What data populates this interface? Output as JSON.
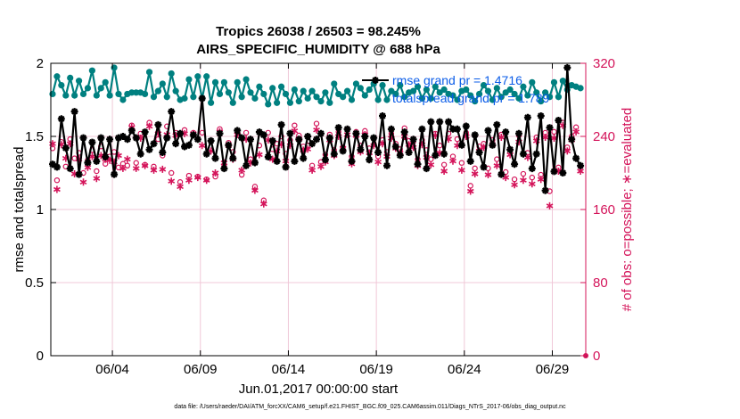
{
  "chart_data": {
    "type": "line",
    "title_line1": "Tropics 26038 / 26503 = 98.245%",
    "title_line2": "AIRS_SPECIFIC_HUMIDITY @ 688 hPa",
    "xlabel": "Jun.01,2017 00:00:00 start",
    "ylabel_left": "rmse and totalspread",
    "ylabel_right": "# of obs: o=possible; ∗=evaluated",
    "xlim": [
      0.5,
      30.9
    ],
    "ylim_left": [
      0,
      2
    ],
    "ylim_right": [
      0,
      320
    ],
    "x_ticks": [
      {
        "x": 4,
        "label": "06/04"
      },
      {
        "x": 9,
        "label": "06/09"
      },
      {
        "x": 14,
        "label": "06/14"
      },
      {
        "x": 19,
        "label": "06/19"
      },
      {
        "x": 24,
        "label": "06/24"
      },
      {
        "x": 29,
        "label": "06/29"
      }
    ],
    "y_ticks_left": [
      {
        "v": 0,
        "label": "0"
      },
      {
        "v": 0.5,
        "label": "0.5"
      },
      {
        "v": 1,
        "label": "1"
      },
      {
        "v": 1.5,
        "label": "1.5"
      },
      {
        "v": 2,
        "label": "2"
      }
    ],
    "y_ticks_right": [
      {
        "v": 0,
        "label": "0"
      },
      {
        "v": 80,
        "label": "80"
      },
      {
        "v": 160,
        "label": "160"
      },
      {
        "v": 240,
        "label": "240"
      },
      {
        "v": 320,
        "label": "320"
      }
    ],
    "grid": true,
    "legend_position": "top-right",
    "colors": {
      "rmse": "#000000",
      "spread": "#008080",
      "obs": "#d4145a",
      "legend_text": "#0a5ce8",
      "grid": "#f0c8d8"
    },
    "x": [
      0.6,
      0.85,
      1.1,
      1.35,
      1.6,
      1.85,
      2.1,
      2.35,
      2.6,
      2.85,
      3.1,
      3.35,
      3.6,
      3.85,
      4.1,
      4.35,
      4.6,
      4.85,
      5.1,
      5.35,
      5.6,
      5.85,
      6.1,
      6.35,
      6.6,
      6.85,
      7.1,
      7.35,
      7.6,
      7.85,
      8.1,
      8.35,
      8.6,
      8.85,
      9.1,
      9.35,
      9.6,
      9.85,
      10.1,
      10.35,
      10.6,
      10.85,
      11.1,
      11.35,
      11.6,
      11.85,
      12.1,
      12.35,
      12.6,
      12.85,
      13.1,
      13.35,
      13.6,
      13.85,
      14.1,
      14.35,
      14.6,
      14.85,
      15.1,
      15.35,
      15.6,
      15.85,
      16.1,
      16.35,
      16.6,
      16.85,
      17.1,
      17.35,
      17.6,
      17.85,
      18.1,
      18.35,
      18.6,
      18.85,
      19.1,
      19.35,
      19.6,
      19.85,
      20.1,
      20.35,
      20.6,
      20.85,
      21.1,
      21.35,
      21.6,
      21.85,
      22.1,
      22.35,
      22.6,
      22.85,
      23.1,
      23.35,
      23.6,
      23.85,
      24.1,
      24.35,
      24.6,
      24.85,
      25.1,
      25.35,
      25.6,
      25.85,
      26.1,
      26.35,
      26.6,
      26.85,
      27.1,
      27.35,
      27.6,
      27.85,
      28.1,
      28.35,
      28.6,
      28.85,
      29.1,
      29.35,
      29.6,
      29.85,
      30.1,
      30.35,
      30.6
    ],
    "series": [
      {
        "name": "rmse grand pr = 1.4716",
        "axis": "left",
        "marker": "star-line",
        "values": [
          1.31,
          1.29,
          1.62,
          1.42,
          1.28,
          1.67,
          1.24,
          1.49,
          1.32,
          1.46,
          1.33,
          1.49,
          1.36,
          1.48,
          1.24,
          1.49,
          1.5,
          1.48,
          1.54,
          1.49,
          1.38,
          1.53,
          1.41,
          1.45,
          1.58,
          1.39,
          1.49,
          1.67,
          1.45,
          1.52,
          1.43,
          1.44,
          1.51,
          1.48,
          1.76,
          1.38,
          1.47,
          1.35,
          1.52,
          1.28,
          1.44,
          1.35,
          1.54,
          1.49,
          1.3,
          1.48,
          1.32,
          1.53,
          1.51,
          1.36,
          1.47,
          1.33,
          1.58,
          1.29,
          1.52,
          1.33,
          1.48,
          1.35,
          1.5,
          1.45,
          1.48,
          1.52,
          1.34,
          1.49,
          1.38,
          1.56,
          1.4,
          1.55,
          1.33,
          1.52,
          1.41,
          1.5,
          1.34,
          1.49,
          1.39,
          1.64,
          1.3,
          1.55,
          1.43,
          1.37,
          1.53,
          1.39,
          1.48,
          1.31,
          1.55,
          1.28,
          1.6,
          1.37,
          1.6,
          1.38,
          1.6,
          1.55,
          1.55,
          1.44,
          1.57,
          1.33,
          1.51,
          1.39,
          1.29,
          1.54,
          1.44,
          1.58,
          1.24,
          1.53,
          1.41,
          1.31,
          1.52,
          1.38,
          1.63,
          1.28,
          1.38,
          1.64,
          1.13,
          1.56,
          1.26,
          1.61,
          1.25,
          1.97,
          1.48,
          1.35,
          1.3
        ]
      },
      {
        "name": "totalspread grand pr = 1.789",
        "axis": "left",
        "marker": "dot-line",
        "values": [
          1.79,
          1.91,
          1.85,
          1.78,
          1.9,
          1.78,
          1.88,
          1.79,
          1.83,
          1.95,
          1.78,
          1.83,
          1.87,
          1.78,
          1.97,
          1.79,
          1.75,
          1.79,
          1.8,
          1.8,
          1.8,
          1.79,
          1.94,
          1.77,
          1.81,
          1.86,
          1.77,
          1.93,
          1.81,
          1.75,
          1.76,
          1.89,
          1.77,
          1.91,
          1.76,
          1.91,
          1.73,
          1.87,
          1.79,
          1.87,
          1.8,
          1.73,
          1.87,
          1.77,
          1.89,
          1.8,
          1.76,
          1.84,
          1.79,
          1.72,
          1.83,
          1.73,
          1.84,
          1.79,
          1.73,
          1.82,
          1.74,
          1.81,
          1.76,
          1.81,
          1.77,
          1.74,
          1.8,
          1.73,
          1.86,
          1.79,
          1.77,
          1.81,
          1.75,
          1.86,
          1.83,
          1.78,
          1.82,
          1.86,
          1.75,
          1.85,
          1.75,
          1.81,
          1.79,
          1.85,
          1.77,
          1.8,
          1.81,
          1.84,
          1.76,
          1.82,
          1.76,
          1.84,
          1.8,
          1.82,
          1.79,
          1.78,
          1.75,
          1.81,
          1.82,
          1.78,
          1.74,
          1.79,
          1.85,
          1.81,
          1.75,
          1.83,
          1.77,
          1.8,
          1.82,
          1.79,
          1.76,
          1.84,
          1.78,
          1.87,
          1.8,
          1.74,
          1.8,
          1.77,
          1.87,
          1.77,
          1.88,
          1.82,
          1.85,
          1.84,
          1.83
        ]
      },
      {
        "name": "possible obs",
        "axis": "right",
        "marker": "circle",
        "values": [
          227,
          192,
          234,
          207,
          237,
          216,
          222,
          200,
          214,
          225,
          202,
          229,
          210,
          218,
          223,
          206,
          210,
          208,
          252,
          211,
          243,
          209,
          255,
          207,
          237,
          219,
          251,
          200,
          244,
          190,
          247,
          197,
          244,
          196,
          244,
          193,
          235,
          196,
          248,
          207,
          233,
          223,
          244,
          198,
          244,
          215,
          185,
          230,
          170,
          244,
          226,
          232,
          240,
          221,
          236,
          252,
          241,
          229,
          230,
          208,
          254,
          212,
          220,
          242,
          225,
          245,
          228,
          248,
          218,
          245,
          230,
          246,
          227,
          238,
          218,
          236,
          223,
          243,
          232,
          226,
          249,
          235,
          234,
          215,
          236,
          225,
          215,
          243,
          230,
          209,
          243,
          218,
          237,
          211,
          244,
          186,
          205,
          229,
          232,
          205,
          236,
          215,
          242,
          201,
          226,
          193,
          241,
          199,
          222,
          195,
          239,
          198,
          244,
          180,
          245,
          206,
          255,
          228,
          240,
          250,
          207
        ]
      },
      {
        "name": "evaluated obs",
        "axis": "right",
        "marker": "asterisk",
        "values": [
          232,
          182,
          231,
          216,
          232,
          199,
          215,
          190,
          206,
          218,
          194,
          219,
          215,
          214,
          212,
          219,
          205,
          215,
          250,
          205,
          238,
          208,
          251,
          203,
          243,
          204,
          242,
          191,
          241,
          185,
          243,
          192,
          243,
          195,
          230,
          192,
          224,
          200,
          245,
          211,
          230,
          215,
          242,
          203,
          237,
          211,
          181,
          220,
          166,
          236,
          215,
          224,
          231,
          213,
          230,
          246,
          237,
          225,
          226,
          203,
          247,
          207,
          212,
          236,
          219,
          240,
          227,
          242,
          210,
          241,
          223,
          242,
          222,
          230,
          212,
          232,
          218,
          238,
          227,
          222,
          240,
          231,
          228,
          208,
          231,
          217,
          209,
          241,
          222,
          202,
          237,
          213,
          230,
          203,
          240,
          180,
          199,
          224,
          228,
          198,
          231,
          208,
          239,
          195,
          220,
          187,
          234,
          192,
          217,
          188,
          235,
          193,
          239,
          164,
          238,
          202,
          252,
          224,
          236,
          245,
          202
        ]
      }
    ],
    "legend": [
      {
        "label": "rmse grand pr = 1.4716",
        "series": "rmse"
      },
      {
        "label": "totalspread grand pr = 1.789",
        "series": "spread"
      }
    ],
    "footer": "data file: /Users/raeder/DAI/ATM_forcXX/CAM6_setup/f.e21.FHIST_BGC.f09_025.CAM6assim.011/Diags_NTrS_2017-06/obs_diag_output.nc"
  }
}
